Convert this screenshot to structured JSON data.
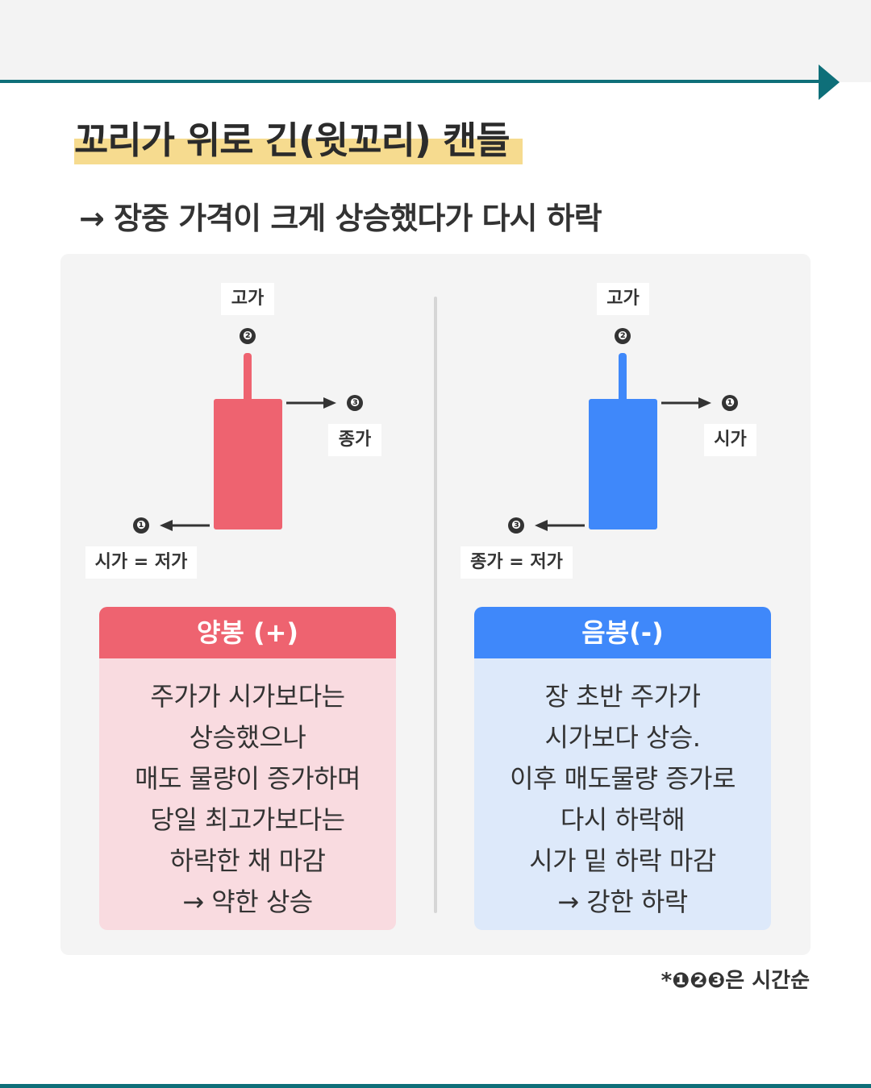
{
  "title": "꼬리가 위로 긴(윗꼬리) 캔들",
  "subtitle": "→ 장중 가격이 크게 상승했다가 다시 하락",
  "colors": {
    "teal": "#0e6f79",
    "highlight": "#f6db8f",
    "red": "#ee6370",
    "blue": "#3f88fa",
    "red_bg": "#f9dbe0",
    "blue_bg": "#dde9fa"
  },
  "left_candle": {
    "high_label": "고가",
    "high_num": "❷",
    "close_num": "❸",
    "close_label": "종가",
    "open_num": "❶",
    "open_label": "시가 = 저가"
  },
  "right_candle": {
    "high_label": "고가",
    "high_num": "❷",
    "open_num": "❶",
    "open_label": "시가",
    "close_num": "❸",
    "close_label": "종가 = 저가"
  },
  "bullish": {
    "title": "양봉 (+)",
    "lines": [
      "주가가 시가보다는",
      "상승했으나",
      "매도 물량이 증가하며",
      "당일 최고가보다는",
      "하락한 채 마감",
      "→ 약한 상승"
    ]
  },
  "bearish": {
    "title": "음봉(-)",
    "lines": [
      "장 초반 주가가",
      "시가보다 상승.",
      "이후 매도물량 증가로",
      "다시 하락해",
      "시가 밑 하락 마감",
      "→ 강한 하락"
    ]
  },
  "footnote": {
    "prefix": "*",
    "nums": [
      "❶",
      "❷",
      "❸"
    ],
    "suffix": "은 시간순"
  }
}
